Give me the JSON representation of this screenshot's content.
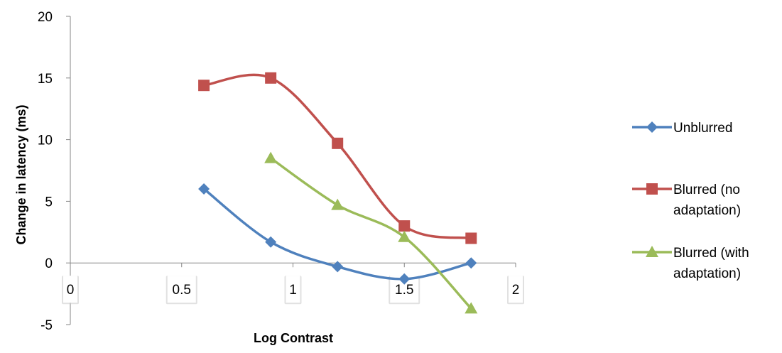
{
  "chart_data": {
    "type": "line",
    "smooth": true,
    "xlabel": "Log Contrast",
    "ylabel": "Change in latency (ms)",
    "xlim": [
      0,
      2
    ],
    "ylim": [
      -5,
      20
    ],
    "xticks": [
      "0",
      "0.5",
      "1",
      "1.5",
      "2"
    ],
    "yticks": [
      "-5",
      "0",
      "5",
      "10",
      "15",
      "20"
    ],
    "grid": false,
    "legend": "right",
    "series": [
      {
        "name": "Unblurred",
        "color": "#4F81BD",
        "marker": "diamond",
        "x": [
          0.6,
          0.9,
          1.2,
          1.5,
          1.8
        ],
        "y": [
          6.0,
          1.7,
          -0.3,
          -1.3,
          0.0
        ]
      },
      {
        "name": "Blurred (no adaptation)",
        "legend_lines": [
          "Blurred (no",
          "adaptation)"
        ],
        "color": "#C0504D",
        "marker": "square",
        "x": [
          0.6,
          0.9,
          1.2,
          1.5,
          1.8
        ],
        "y": [
          14.4,
          15.0,
          9.7,
          3.0,
          2.0
        ]
      },
      {
        "name": "Blurred (with adaptation)",
        "legend_lines": [
          "Blurred (with",
          "adaptation)"
        ],
        "color": "#9BBB59",
        "marker": "triangle",
        "x": [
          0.9,
          1.2,
          1.5,
          1.8
        ],
        "y": [
          8.5,
          4.7,
          2.1,
          -3.7
        ]
      }
    ]
  }
}
